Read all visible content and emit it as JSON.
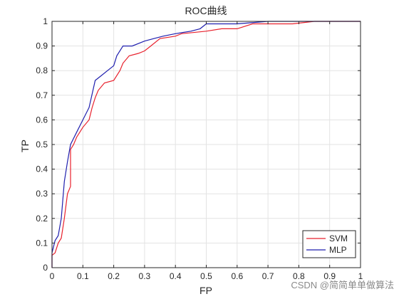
{
  "chart_data": {
    "type": "line",
    "title": "ROC曲线",
    "xlabel": "FP",
    "ylabel": "TP",
    "xlim": [
      0,
      1
    ],
    "ylim": [
      0,
      1
    ],
    "x_ticks": [
      "0",
      "0.1",
      "0.2",
      "0.3",
      "0.4",
      "0.5",
      "0.6",
      "0.7",
      "0.8",
      "0.9",
      "1"
    ],
    "y_ticks": [
      "0",
      "0.1",
      "0.2",
      "0.3",
      "0.4",
      "0.5",
      "0.6",
      "0.7",
      "0.8",
      "0.9",
      "1"
    ],
    "grid": true,
    "legend_position": "bottom-right",
    "series": [
      {
        "name": "SVM",
        "color": "#e8212d",
        "points": [
          [
            0,
            0
          ],
          [
            0,
            0.05
          ],
          [
            0.01,
            0.06
          ],
          [
            0.02,
            0.1
          ],
          [
            0.03,
            0.12
          ],
          [
            0.04,
            0.2
          ],
          [
            0.05,
            0.3
          ],
          [
            0.06,
            0.33
          ],
          [
            0.06,
            0.48
          ],
          [
            0.07,
            0.5
          ],
          [
            0.08,
            0.53
          ],
          [
            0.09,
            0.55
          ],
          [
            0.1,
            0.57
          ],
          [
            0.12,
            0.6
          ],
          [
            0.13,
            0.65
          ],
          [
            0.14,
            0.69
          ],
          [
            0.15,
            0.72
          ],
          [
            0.17,
            0.75
          ],
          [
            0.2,
            0.76
          ],
          [
            0.22,
            0.8
          ],
          [
            0.23,
            0.83
          ],
          [
            0.25,
            0.86
          ],
          [
            0.28,
            0.87
          ],
          [
            0.3,
            0.88
          ],
          [
            0.32,
            0.9
          ],
          [
            0.35,
            0.93
          ],
          [
            0.4,
            0.94
          ],
          [
            0.42,
            0.95
          ],
          [
            0.5,
            0.96
          ],
          [
            0.55,
            0.97
          ],
          [
            0.6,
            0.97
          ],
          [
            0.65,
            0.99
          ],
          [
            0.78,
            0.99
          ],
          [
            0.85,
            1.0
          ],
          [
            1.0,
            1.0
          ]
        ]
      },
      {
        "name": "MLP",
        "color": "#1f1fae",
        "points": [
          [
            0,
            0
          ],
          [
            0,
            0.06
          ],
          [
            0.01,
            0.11
          ],
          [
            0.02,
            0.13
          ],
          [
            0.03,
            0.2
          ],
          [
            0.04,
            0.35
          ],
          [
            0.05,
            0.43
          ],
          [
            0.06,
            0.5
          ],
          [
            0.08,
            0.55
          ],
          [
            0.1,
            0.6
          ],
          [
            0.12,
            0.65
          ],
          [
            0.14,
            0.76
          ],
          [
            0.16,
            0.78
          ],
          [
            0.18,
            0.8
          ],
          [
            0.2,
            0.82
          ],
          [
            0.21,
            0.86
          ],
          [
            0.23,
            0.9
          ],
          [
            0.26,
            0.9
          ],
          [
            0.3,
            0.92
          ],
          [
            0.33,
            0.93
          ],
          [
            0.36,
            0.94
          ],
          [
            0.4,
            0.95
          ],
          [
            0.45,
            0.96
          ],
          [
            0.48,
            0.97
          ],
          [
            0.5,
            0.99
          ],
          [
            0.6,
            0.99
          ],
          [
            0.7,
            1.0
          ],
          [
            1.0,
            1.0
          ]
        ]
      }
    ]
  },
  "watermark": "CSDN @简简单单做算法"
}
